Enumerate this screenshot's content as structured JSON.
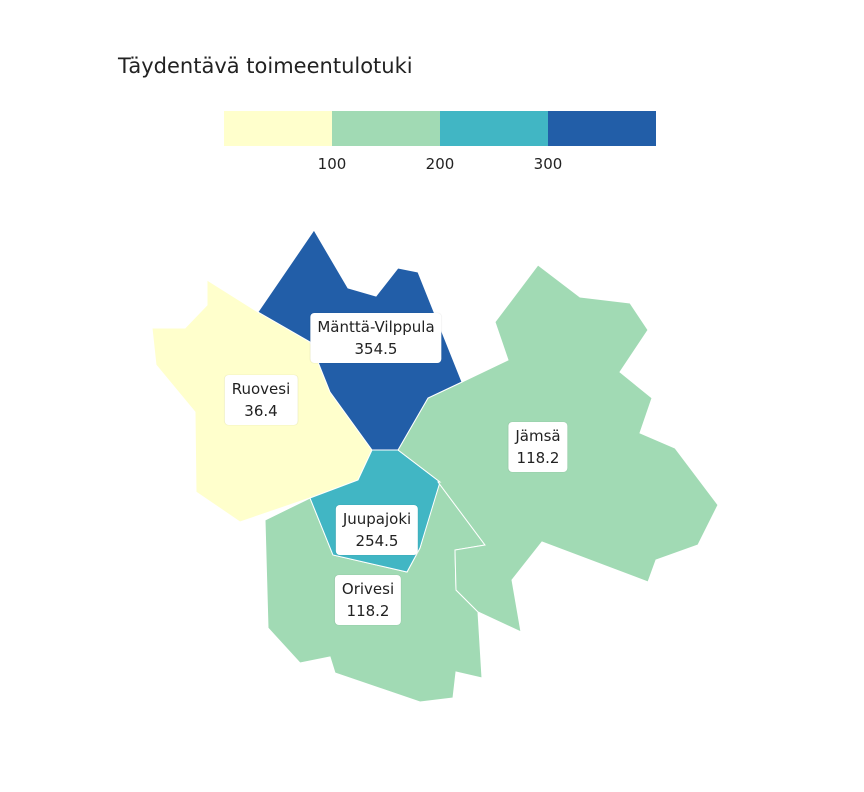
{
  "title": "Täydentävä toimeentulotuki",
  "legend": {
    "colors": [
      "#ffffcc",
      "#a1dab4",
      "#41b6c4",
      "#225ea8"
    ],
    "ticks": [
      "100",
      "200",
      "300"
    ]
  },
  "regions": [
    {
      "name": "Mänttä-Vilppula",
      "value": "354.5",
      "color": "#225ea8"
    },
    {
      "name": "Ruovesi",
      "value": "36.4",
      "color": "#ffffcc"
    },
    {
      "name": "Jämsä",
      "value": "118.2",
      "color": "#a1dab4"
    },
    {
      "name": "Juupajoki",
      "value": "254.5",
      "color": "#41b6c4"
    },
    {
      "name": "Orivesi",
      "value": "118.2",
      "color": "#a1dab4"
    }
  ]
}
